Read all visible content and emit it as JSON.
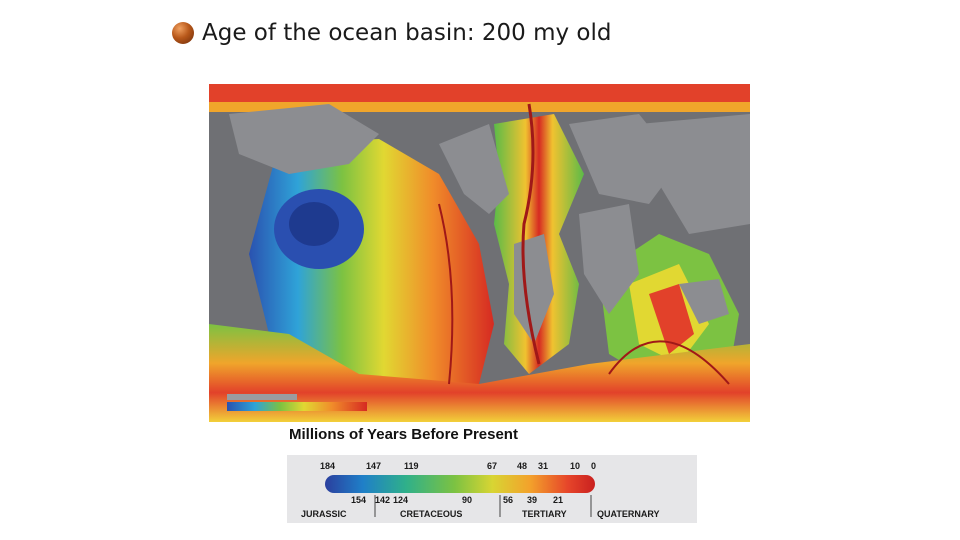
{
  "slide": {
    "title": "Age of the ocean basin: 200 my old",
    "bullet_icon": "bullet-circle-icon",
    "caption": "Millions of Years Before Present"
  },
  "legend": {
    "top_ticks": [
      "184",
      "147",
      "119",
      "67",
      "48",
      "31",
      "10",
      "0"
    ],
    "bottom_ticks": [
      "154",
      "142",
      "124",
      "90",
      "56",
      "39",
      "21"
    ],
    "periods": [
      "JURASSIC",
      "CRETACEOUS",
      "TERTIARY",
      "QUATERNARY"
    ],
    "colors": [
      "#2b3f9e",
      "#1f7fc8",
      "#2fb08a",
      "#7cc242",
      "#d8d533",
      "#f3a12b",
      "#e6452a",
      "#c9201f"
    ]
  }
}
